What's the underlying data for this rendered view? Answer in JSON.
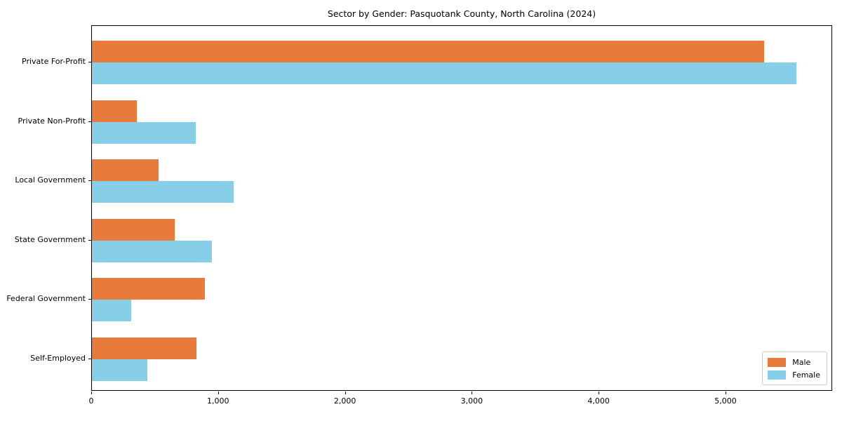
{
  "title": "Sector by Gender: Pasquotank County, North Carolina (2024)",
  "chart_data": {
    "type": "bar",
    "orientation": "horizontal",
    "title": "Sector by Gender: Pasquotank County, North Carolina (2024)",
    "categories": [
      "Private For-Profit",
      "Private Non-Profit",
      "Local Government",
      "State Government",
      "Federal Government",
      "Self-Employed"
    ],
    "series": [
      {
        "name": "Male",
        "color": "#E87A3C",
        "values": [
          5310,
          355,
          525,
          655,
          890,
          825
        ]
      },
      {
        "name": "Female",
        "color": "#87CEE8",
        "values": [
          5565,
          820,
          1120,
          950,
          310,
          440
        ]
      }
    ],
    "xlabel": "",
    "ylabel": "",
    "xlim": [
      0,
      5841
    ],
    "xticks": [
      0,
      1000,
      2000,
      3000,
      4000,
      5000
    ],
    "xtick_labels": [
      "0",
      "1,000",
      "2,000",
      "3,000",
      "4,000",
      "5,000"
    ],
    "grid": false,
    "legend": {
      "position": "lower-right",
      "labels": [
        "Male",
        "Female"
      ]
    }
  }
}
